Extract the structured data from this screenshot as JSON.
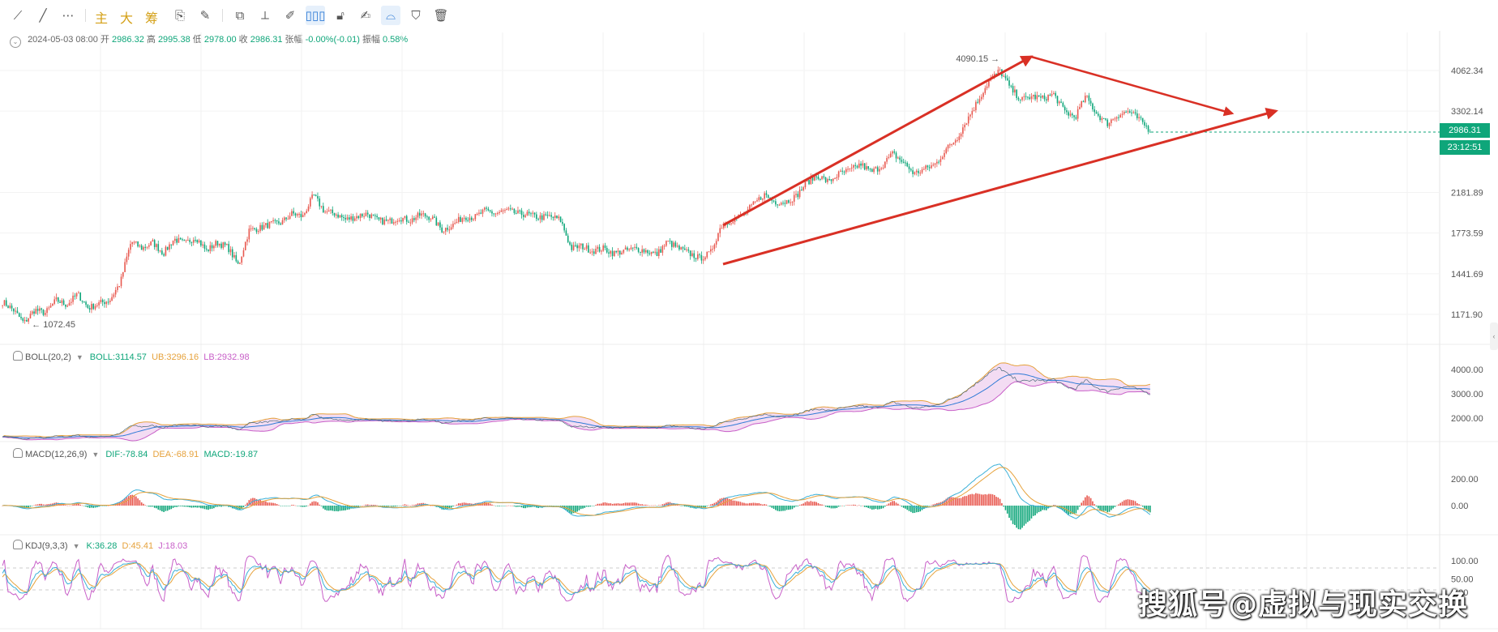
{
  "toolbar": {
    "items": [
      {
        "name": "line-segment-icon",
        "glyph": "⟋"
      },
      {
        "name": "ray-icon",
        "glyph": "╱"
      },
      {
        "name": "more-icon",
        "glyph": "⋯"
      }
    ],
    "text_buttons": [
      "主",
      "大",
      "筹"
    ],
    "tools": [
      {
        "name": "draw-icon",
        "glyph": "⎘"
      },
      {
        "name": "pencil-icon",
        "glyph": "✎"
      },
      {
        "name": "copy-icon",
        "glyph": "⧉"
      },
      {
        "name": "ruler-icon",
        "glyph": "⟂"
      },
      {
        "name": "brush-icon",
        "glyph": "✐"
      },
      {
        "name": "candle-icon",
        "glyph": "▯▯▯",
        "active": true
      },
      {
        "name": "lock-icon",
        "glyph": "🔓︎"
      },
      {
        "name": "note-icon",
        "glyph": "✍"
      },
      {
        "name": "magnet-icon",
        "glyph": "⌓",
        "active": true
      },
      {
        "name": "filter-icon",
        "glyph": "⛉"
      },
      {
        "name": "trash-icon",
        "glyph": "🗑︎"
      }
    ]
  },
  "ohlc": {
    "date": "2024-05-03 08:00",
    "open_label": "开",
    "open": "2986.32",
    "high_label": "高",
    "high": "2995.38",
    "low_label": "低",
    "low": "2978.00",
    "close_label": "收",
    "close": "2986.31",
    "chg_label": "张幅",
    "chg": "-0.00%(-0.01)",
    "amp_label": "振幅",
    "amp": "0.58%"
  },
  "price_tag": "2986.31",
  "time_tag": "23:12:51",
  "boll_legend": {
    "name": "BOLL(20,2)",
    "mid": "BOLL:3114.57",
    "ub": "UB:3296.16",
    "lb": "LB:2932.98"
  },
  "macd_legend": {
    "name": "MACD(12,26,9)",
    "dif": "DIF:-78.84",
    "dea": "DEA:-68.91",
    "macd": "MACD:-19.87"
  },
  "kdj_legend": {
    "name": "KDJ(9,3,3)",
    "k": "K:36.28",
    "d": "D:45.41",
    "j": "J:18.03"
  },
  "watermark": "搜狐号@虚拟与现实交换",
  "colors": {
    "up": "#e8584f",
    "down": "#0fa67a",
    "arrow": "#d93025",
    "boll_fill": "#f3dcf3",
    "mid": "#2f7bd6",
    "ub": "#e6a23c",
    "lb": "#c85fc8"
  },
  "chart_data": [
    {
      "type": "candlestick",
      "title": "",
      "y_ticks": [
        4062.34,
        3302.14,
        2181.89,
        1773.59,
        1441.69,
        1171.9
      ],
      "annotations": {
        "high_label": "4090.15",
        "low_label": "1072.45"
      },
      "trend_lines": "upper line and lower line of a rising wedge, each ending in a red arrow",
      "close_path": [
        1250,
        1200,
        1120,
        1200,
        1180,
        1260,
        1230,
        1300,
        1210,
        1240,
        1260,
        1380,
        1700,
        1640,
        1690,
        1600,
        1720,
        1680,
        1740,
        1620,
        1690,
        1650,
        1500,
        1800,
        1820,
        1860,
        1870,
        1960,
        1930,
        2150,
        1980,
        1960,
        1900,
        1930,
        1960,
        1890,
        1880,
        1920,
        1890,
        1950,
        1920,
        1800,
        1850,
        1930,
        1920,
        1990,
        1960,
        1990,
        1960,
        1950,
        1920,
        1930,
        1900,
        1640,
        1660,
        1620,
        1640,
        1600,
        1620,
        1640,
        1620,
        1590,
        1700,
        1640,
        1600,
        1560,
        1600,
        1840,
        1900,
        1940,
        2050,
        2160,
        2080,
        2080,
        2140,
        2300,
        2380,
        2300,
        2400,
        2440,
        2520,
        2420,
        2500,
        2660,
        2540,
        2400,
        2460,
        2520,
        2720,
        2880,
        3180,
        3500,
        3860,
        4060,
        3700,
        3500,
        3560,
        3520,
        3600,
        3300,
        3200,
        3560,
        3260,
        3100,
        3240,
        3300,
        3160,
        2990
      ]
    },
    {
      "type": "line",
      "title": "BOLL(20,2)",
      "y_ticks": [
        4000.0,
        3000.0,
        2000.0
      ],
      "series": [
        {
          "name": "BOLL"
        },
        {
          "name": "UB"
        },
        {
          "name": "LB"
        }
      ],
      "last": {
        "BOLL": 3114.57,
        "UB": 3296.16,
        "LB": 2932.98
      }
    },
    {
      "type": "bar",
      "title": "MACD(12,26,9)",
      "y_ticks": [
        200.0,
        0.0
      ],
      "series": [
        {
          "name": "DIF"
        },
        {
          "name": "DEA"
        },
        {
          "name": "MACD"
        }
      ],
      "last": {
        "DIF": -78.84,
        "DEA": -68.91,
        "MACD": -19.87
      }
    },
    {
      "type": "line",
      "title": "KDJ(9,3,3)",
      "y_ticks": [
        100.0,
        50.0,
        0.0
      ],
      "series": [
        {
          "name": "K"
        },
        {
          "name": "D"
        },
        {
          "name": "J"
        }
      ],
      "last": {
        "K": 36.28,
        "D": 45.41,
        "J": 18.03
      }
    }
  ]
}
